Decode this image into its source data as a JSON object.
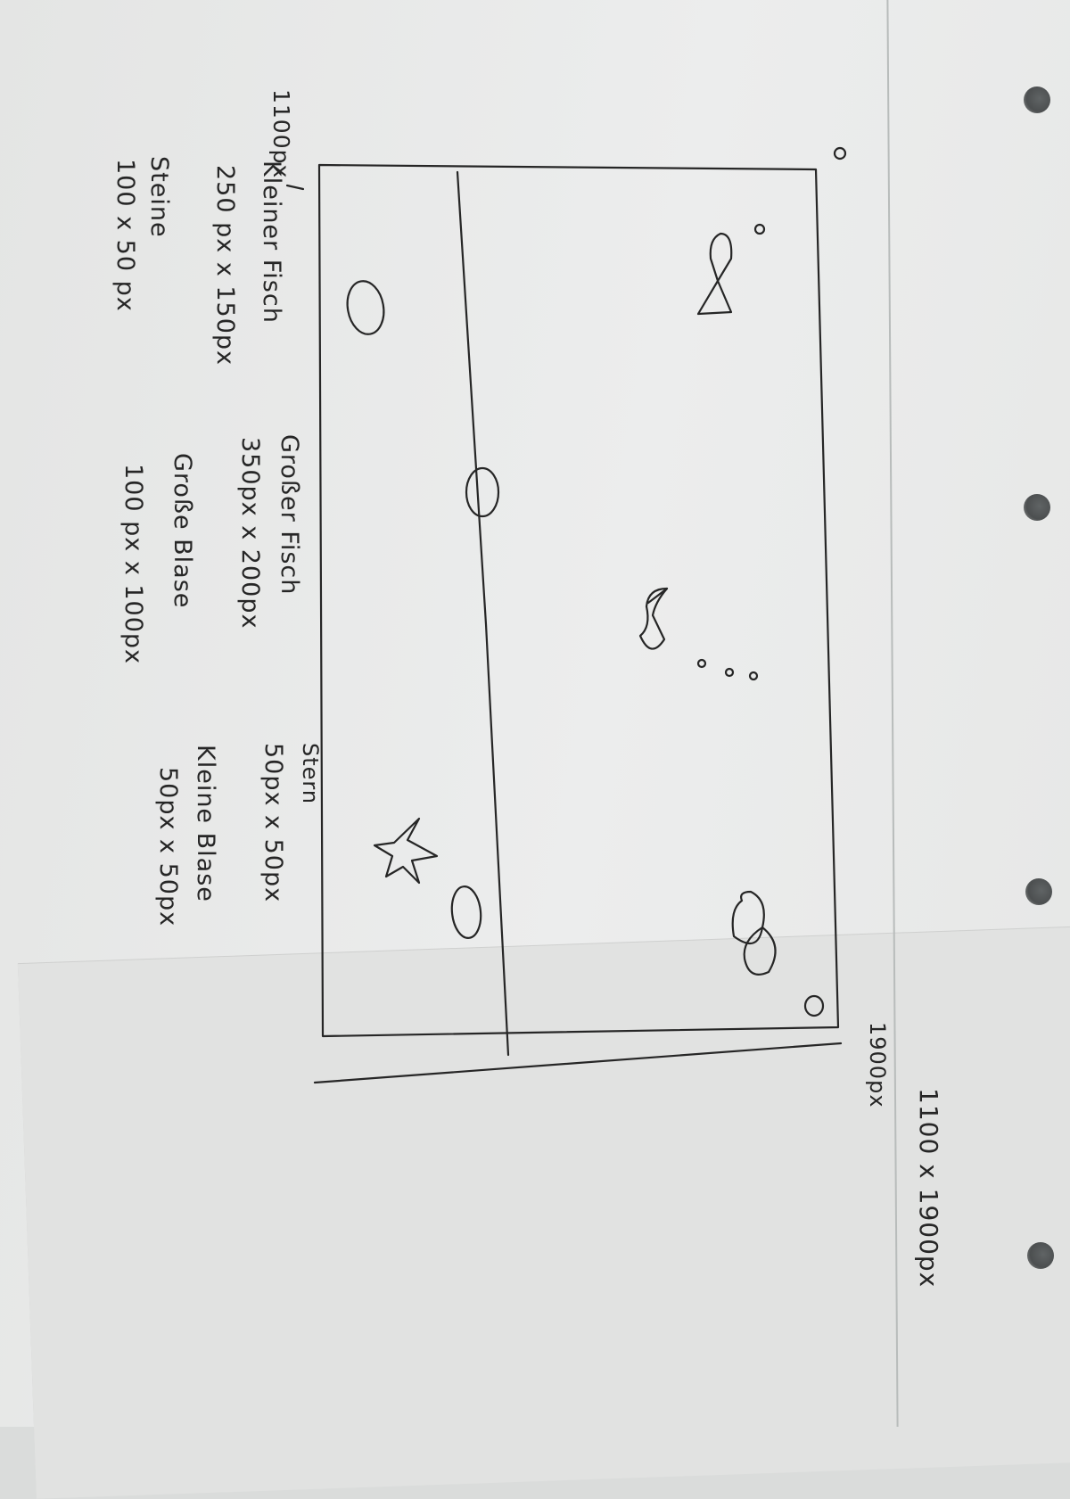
{
  "overall_size": "1100 x 1900px",
  "aquarium_width_label": "1900px",
  "sand_height_label": "1100px",
  "legend": {
    "small_fish": {
      "name": "Kleiner Fisch",
      "size": "250 px x 150px"
    },
    "stones": {
      "name": "Steine",
      "size": "100 x 50 px"
    },
    "big_fish": {
      "name": "Großer Fisch",
      "size": "350px x 200px"
    },
    "big_bubble": {
      "name": "Große Blase",
      "size": "100 px x 100px"
    },
    "star": {
      "name": "Stern",
      "size": "50px x 50px"
    },
    "small_bubble": {
      "name": "Kleine Blase",
      "size": "50px x 50px"
    }
  },
  "colors": {
    "ink": "#262626",
    "paper": "#eaebea",
    "margin_line": "#b8bcbb"
  }
}
